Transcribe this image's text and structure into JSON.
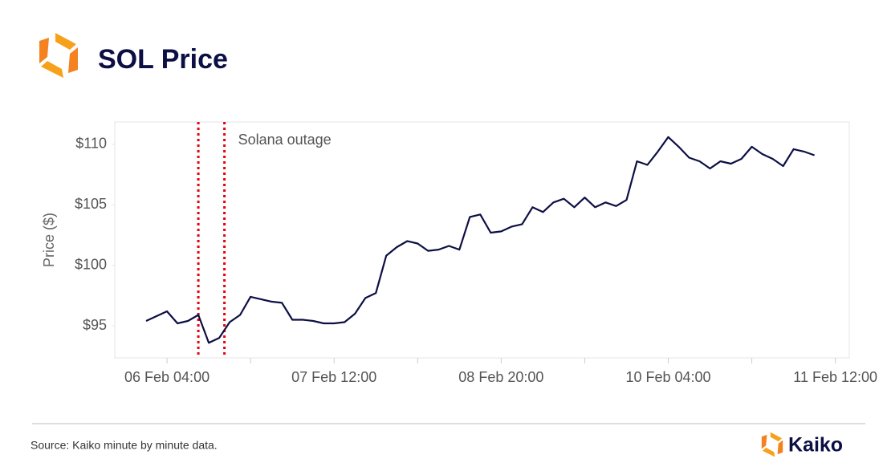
{
  "chart_data": {
    "type": "line",
    "title": "SOL Price",
    "y_label": "Price ($)",
    "annotation": "Solana outage",
    "outage_lines": [
      "06 Feb 10:00",
      "06 Feb 15:00"
    ],
    "outage_color": "#e8000b",
    "source": "Source: Kaiko minute by minute data.",
    "brand": "Kaiko",
    "x": [
      "06 Feb 00:00",
      "06 Feb 02:00",
      "06 Feb 04:00",
      "06 Feb 06:00",
      "06 Feb 08:00",
      "06 Feb 10:00",
      "06 Feb 12:00",
      "06 Feb 14:00",
      "06 Feb 16:00",
      "06 Feb 18:00",
      "06 Feb 20:00",
      "06 Feb 22:00",
      "07 Feb 00:00",
      "07 Feb 02:00",
      "07 Feb 04:00",
      "07 Feb 06:00",
      "07 Feb 08:00",
      "07 Feb 10:00",
      "07 Feb 12:00",
      "07 Feb 14:00",
      "07 Feb 16:00",
      "07 Feb 18:00",
      "07 Feb 20:00",
      "07 Feb 22:00",
      "08 Feb 00:00",
      "08 Feb 02:00",
      "08 Feb 04:00",
      "08 Feb 06:00",
      "08 Feb 08:00",
      "08 Feb 10:00",
      "08 Feb 12:00",
      "08 Feb 14:00",
      "08 Feb 16:00",
      "08 Feb 18:00",
      "08 Feb 20:00",
      "08 Feb 22:00",
      "09 Feb 00:00",
      "09 Feb 02:00",
      "09 Feb 04:00",
      "09 Feb 06:00",
      "09 Feb 08:00",
      "09 Feb 10:00",
      "09 Feb 12:00",
      "09 Feb 14:00",
      "09 Feb 16:00",
      "09 Feb 18:00",
      "09 Feb 20:00",
      "09 Feb 22:00",
      "10 Feb 00:00",
      "10 Feb 02:00",
      "10 Feb 04:00",
      "10 Feb 06:00",
      "10 Feb 08:00",
      "10 Feb 10:00",
      "10 Feb 12:00",
      "10 Feb 14:00",
      "10 Feb 16:00",
      "10 Feb 18:00",
      "10 Feb 20:00",
      "10 Feb 22:00",
      "11 Feb 00:00",
      "11 Feb 02:00",
      "11 Feb 04:00",
      "11 Feb 06:00",
      "11 Feb 08:00"
    ],
    "series": [
      {
        "name": "SOL",
        "color": "#0c0f44",
        "values": [
          95.4,
          95.8,
          96.2,
          95.2,
          95.4,
          95.9,
          93.6,
          94.0,
          95.3,
          95.9,
          97.4,
          97.2,
          97.0,
          96.9,
          95.5,
          95.5,
          95.4,
          95.2,
          95.2,
          95.3,
          96.0,
          97.3,
          97.7,
          100.8,
          101.5,
          102.0,
          101.8,
          101.2,
          101.3,
          101.6,
          101.3,
          104.0,
          104.2,
          102.7,
          102.8,
          103.2,
          103.4,
          104.8,
          104.4,
          105.2,
          105.5,
          104.8,
          105.6,
          104.8,
          105.2,
          104.9,
          105.4,
          108.6,
          108.3,
          109.4,
          110.6,
          109.8,
          108.9,
          108.6,
          108.0,
          108.6,
          108.4,
          108.8,
          109.8,
          109.2,
          108.8,
          108.2,
          109.6,
          109.4,
          109.1
        ]
      }
    ],
    "xlim": [
      "05 Feb 18:00",
      "11 Feb 14:40"
    ],
    "xticks": [
      "06 Feb 04:00",
      {
        "value": "06 Feb 20:00",
        "label": null
      },
      "07 Feb 12:00",
      {
        "value": "08 Feb 04:00",
        "label": null
      },
      "08 Feb 20:00",
      {
        "value": "09 Feb 12:00",
        "label": null
      },
      "10 Feb 04:00",
      {
        "value": "10 Feb 20:00",
        "label": null
      },
      "11 Feb 12:00"
    ],
    "ylim": [
      92.35,
      111.85
    ],
    "yticks": [
      {
        "value": 95,
        "label": "$95"
      },
      {
        "value": 100,
        "label": "$100"
      },
      {
        "value": 105,
        "label": "$105"
      },
      {
        "value": 110,
        "label": "$110"
      }
    ],
    "grid": false
  }
}
